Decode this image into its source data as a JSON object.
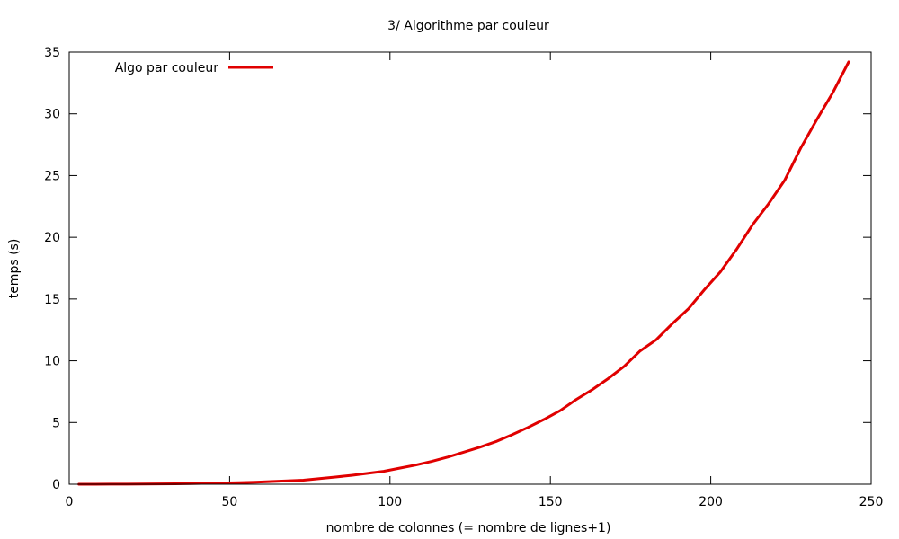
{
  "chart_data": {
    "type": "line",
    "title": "3/ Algorithme par couleur",
    "xlabel": "nombre de colonnes (= nombre de lignes+1)",
    "ylabel": "temps (s)",
    "xlim": [
      0,
      250
    ],
    "ylim": [
      0,
      35
    ],
    "xticks": [
      0,
      50,
      100,
      150,
      200,
      250
    ],
    "yticks": [
      0,
      5,
      10,
      15,
      20,
      25,
      30,
      35
    ],
    "grid": false,
    "legend_position": "top-left",
    "series": [
      {
        "name": "Algo par couleur",
        "color": "#e00000",
        "x": [
          3,
          8,
          13,
          18,
          23,
          28,
          33,
          38,
          43,
          48,
          53,
          58,
          63,
          68,
          73,
          78,
          83,
          88,
          93,
          98,
          103,
          108,
          113,
          118,
          123,
          128,
          133,
          138,
          143,
          148,
          153,
          158,
          163,
          168,
          173,
          178,
          183,
          188,
          193,
          198,
          203,
          208,
          213,
          218,
          223,
          228,
          233,
          238,
          243
        ],
        "y": [
          0.0,
          0.0,
          0.01,
          0.01,
          0.02,
          0.03,
          0.04,
          0.06,
          0.08,
          0.1,
          0.13,
          0.17,
          0.22,
          0.27,
          0.33,
          0.45,
          0.58,
          0.72,
          0.88,
          1.05,
          1.3,
          1.55,
          1.85,
          2.2,
          2.6,
          3.0,
          3.45,
          4.0,
          4.6,
          5.25,
          5.95,
          6.85,
          7.65,
          8.55,
          9.55,
          10.8,
          11.7,
          13.0,
          14.2,
          15.75,
          17.2,
          19.0,
          21.0,
          22.7,
          24.6,
          27.2,
          29.5,
          31.7,
          34.2
        ]
      }
    ]
  }
}
